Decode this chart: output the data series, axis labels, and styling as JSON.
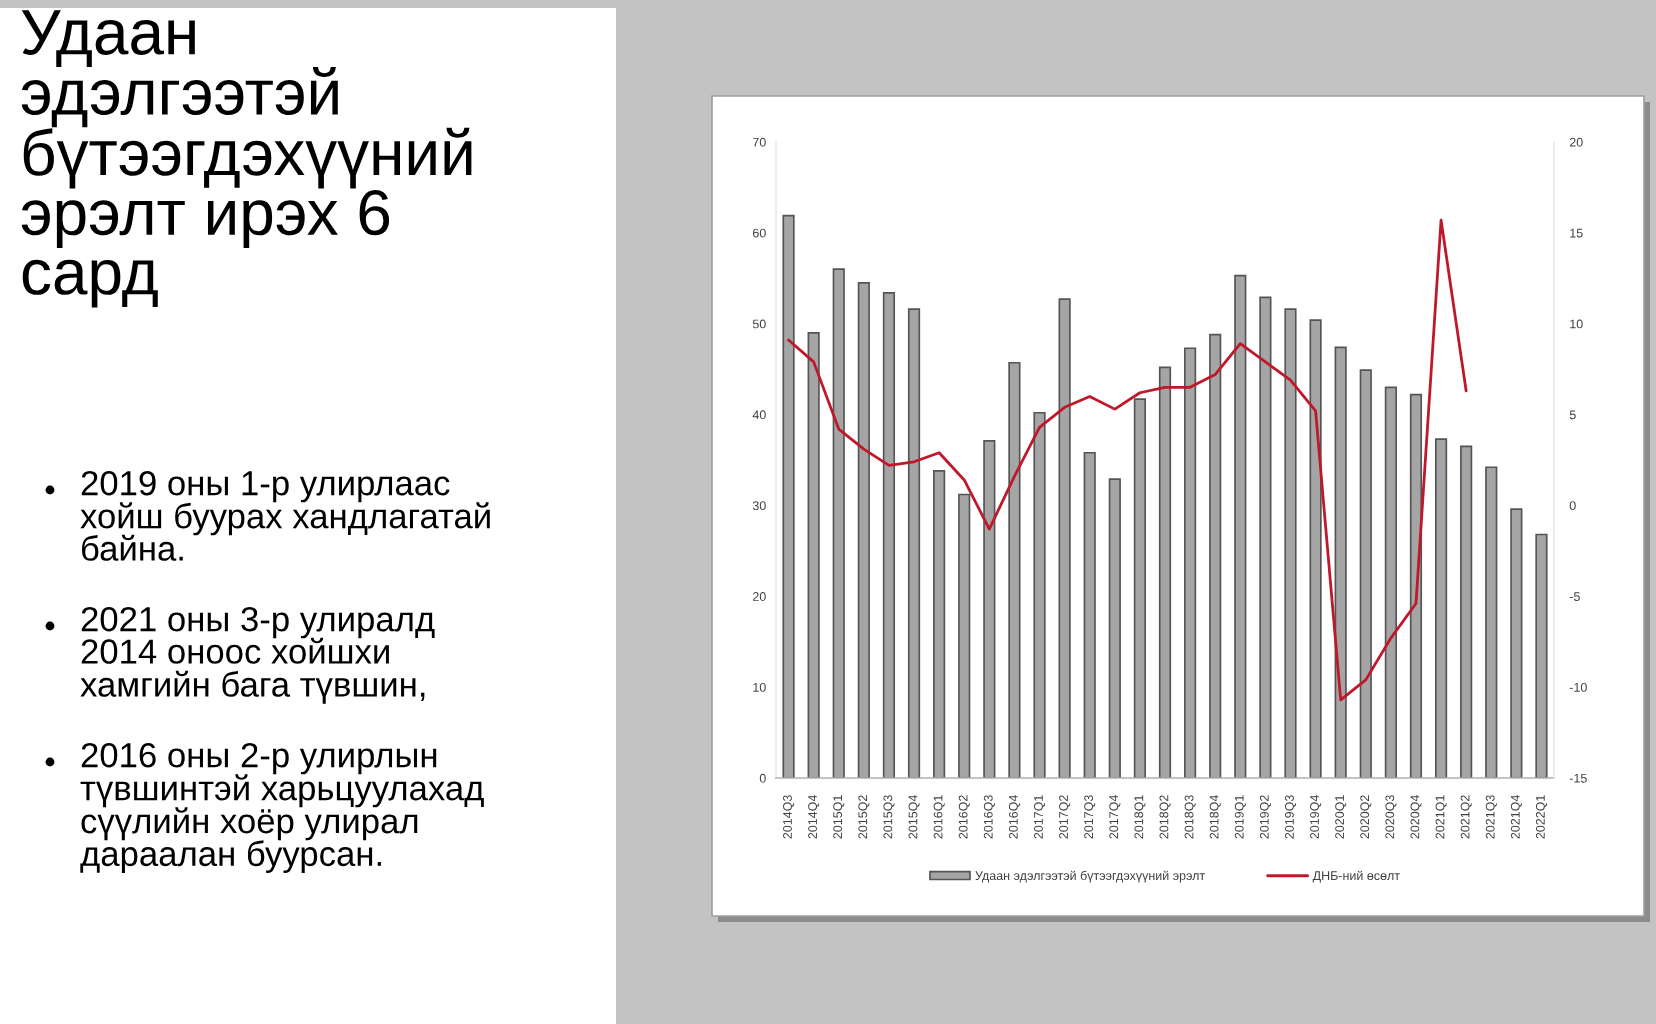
{
  "chart_data": {
    "type": "bar",
    "title": "Удаан эдэлгээтэй бүтээгдэхүүний эрэлт ирэх 6 сард",
    "categories": [
      "2014Q3",
      "2014Q4",
      "2015Q1",
      "2015Q2",
      "2015Q3",
      "2015Q4",
      "2016Q1",
      "2016Q2",
      "2016Q3",
      "2016Q4",
      "2017Q1",
      "2017Q2",
      "2017Q3",
      "2017Q4",
      "2018Q1",
      "2018Q2",
      "2018Q3",
      "2018Q4",
      "2019Q1",
      "2019Q2",
      "2019Q3",
      "2019Q4",
      "2020Q1",
      "2020Q2",
      "2020Q3",
      "2020Q4",
      "2021Q1",
      "2021Q2",
      "2021Q3",
      "2021Q4",
      "2022Q1"
    ],
    "series": [
      {
        "name": "Удаан эдэлгээтэй бүтээгдэхүүний эрэлт",
        "color": "#a5a5a5",
        "values": [
          61.9,
          49.0,
          56.0,
          54.5,
          53.4,
          51.6,
          33.8,
          31.2,
          37.1,
          45.7,
          40.2,
          52.7,
          35.8,
          32.9,
          41.7,
          45.2,
          47.3,
          48.8,
          55.3,
          52.9,
          51.6,
          50.4,
          47.4,
          44.9,
          43.0,
          42.2,
          37.3,
          36.5,
          34.2,
          29.6,
          26.8
        ]
      },
      {
        "name": "ДНБ-ний өсөлт",
        "type": "line",
        "axis": "y2",
        "color": "#c0182a",
        "values": [
          9.1,
          7.9,
          4.2,
          3.1,
          2.2,
          2.4,
          2.9,
          1.4,
          -1.3,
          1.6,
          4.3,
          5.4,
          6.0,
          5.3,
          6.2,
          6.5,
          6.5,
          7.2,
          8.9,
          7.9,
          6.9,
          5.2,
          -10.7,
          -9.6,
          -7.3,
          -5.4,
          15.7,
          6.3,
          null,
          null,
          null
        ]
      }
    ],
    "ylim": [
      0,
      70
    ],
    "yticks": [
      0,
      10,
      20,
      30,
      40,
      50,
      60,
      70
    ],
    "y2lim": [
      -15,
      20
    ],
    "y2ticks": [
      -15,
      -10,
      -5,
      0,
      5,
      10,
      15,
      20
    ],
    "legend": "bottom",
    "annotations": [
      "2019 оны 1-р улирлаас хойш буурах хандлагатай байна.",
      "2021 оны 3-р улиралд 2014 оноос хойшхи хамгийн бага түвшин,",
      "2016 оны 2-р улирлын түвшинтэй харьцуулахад сүүлийн хоёр улирал дараалан буурсан."
    ]
  }
}
